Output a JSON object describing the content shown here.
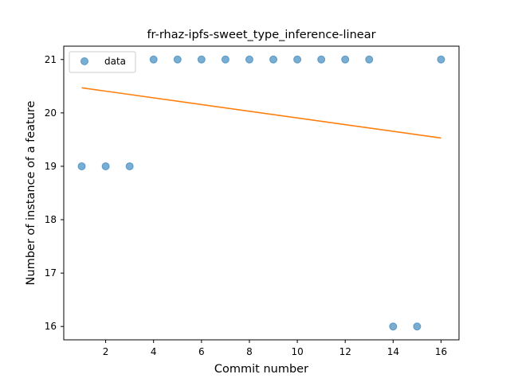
{
  "chart_data": {
    "type": "scatter",
    "title": "fr-rhaz-ipfs-sweet_type_inference-linear",
    "xlabel": "Commit number",
    "ylabel": "Number of instance of a feature",
    "xlim": [
      0.25,
      16.75
    ],
    "ylim": [
      15.75,
      21.25
    ],
    "xticks": [
      2,
      4,
      6,
      8,
      10,
      12,
      14,
      16
    ],
    "yticks": [
      16,
      17,
      18,
      19,
      20,
      21
    ],
    "grid": false,
    "legend": {
      "placement": "upper-left",
      "entries": [
        "data"
      ]
    },
    "series": [
      {
        "name": "data",
        "kind": "scatter",
        "color": "#1f77b4",
        "x": [
          1,
          2,
          3,
          4,
          5,
          6,
          7,
          8,
          9,
          10,
          11,
          12,
          13,
          14,
          15,
          16
        ],
        "y": [
          19,
          19,
          19,
          21,
          21,
          21,
          21,
          21,
          21,
          21,
          21,
          21,
          21,
          16,
          16,
          21
        ]
      },
      {
        "kind": "line",
        "color": "#ff7f0e",
        "x": [
          1,
          16
        ],
        "y": [
          20.47,
          19.53
        ]
      }
    ]
  }
}
